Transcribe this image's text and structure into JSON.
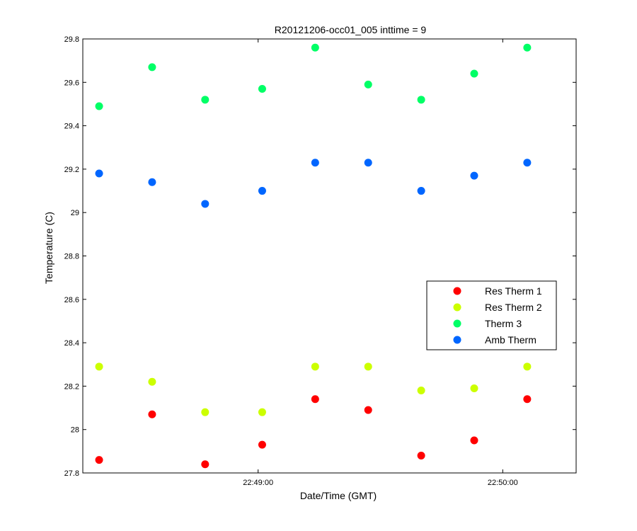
{
  "chart_data": {
    "type": "scatter",
    "title": "R20121206-occ01_005 inttime = 9",
    "xlabel": "Date/Time (GMT)",
    "ylabel": "Temperature (C)",
    "xlim": [
      "22:48:17",
      "22:50:18"
    ],
    "ylim": [
      27.8,
      29.8
    ],
    "yticks": [
      27.8,
      28,
      28.2,
      28.4,
      28.6,
      28.8,
      29,
      29.2,
      29.4,
      29.6,
      29.8
    ],
    "ytick_labels": [
      "27.8",
      "28",
      "28.2",
      "28.4",
      "28.6",
      "28.8",
      "29",
      "29.2",
      "29.4",
      "29.6",
      "29.8"
    ],
    "xticks": [
      "22:49:00",
      "22:50:00"
    ],
    "xtick_labels": [
      "22:49:00",
      "22:50:00"
    ],
    "x": [
      "22:48:21",
      "22:48:34",
      "22:48:47",
      "22:49:01",
      "22:49:14",
      "22:49:27",
      "22:49:40",
      "22:49:53",
      "22:50:06"
    ],
    "grid": false,
    "legend_position": "right",
    "series": [
      {
        "name": "Res Therm 1",
        "color": "#ff0000",
        "values": [
          27.86,
          28.07,
          27.84,
          27.93,
          28.14,
          28.09,
          27.88,
          27.95,
          28.14
        ]
      },
      {
        "name": "Res Therm 2",
        "color": "#ccff00",
        "values": [
          28.29,
          28.22,
          28.08,
          28.08,
          28.29,
          28.29,
          28.18,
          28.19,
          28.29
        ]
      },
      {
        "name": "Therm 3",
        "color": "#00ff66",
        "values": [
          29.49,
          29.67,
          29.52,
          29.57,
          29.76,
          29.59,
          29.52,
          29.64,
          29.76
        ]
      },
      {
        "name": "Amb Therm",
        "color": "#0066ff",
        "values": [
          29.18,
          29.14,
          29.04,
          29.1,
          29.23,
          29.23,
          29.1,
          29.17,
          29.23
        ]
      }
    ]
  }
}
